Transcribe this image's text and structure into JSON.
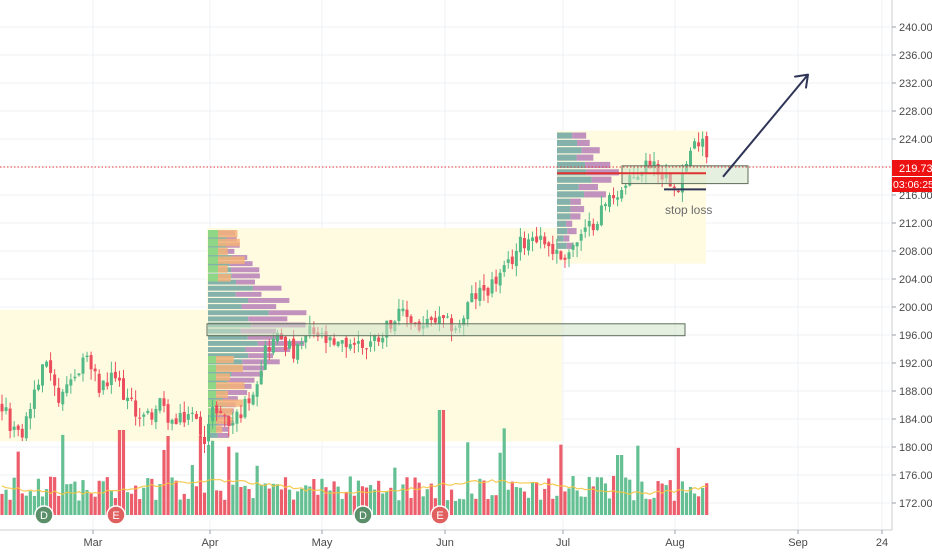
{
  "chart_data": {
    "type": "candlestick",
    "y_axis": {
      "ticks": [
        "240.00",
        "236.00",
        "232.00",
        "228.00",
        "224.00",
        "220.00",
        "216.00",
        "212.00",
        "208.00",
        "204.00",
        "200.00",
        "196.00",
        "192.00",
        "188.00",
        "184.00",
        "180.00",
        "176.00",
        "172.00"
      ],
      "range": [
        168.6,
        244.2
      ]
    },
    "x_axis": {
      "labels": [
        "Mar",
        "Apr",
        "May",
        "Jun",
        "Jul",
        "Aug",
        "Sep",
        "24"
      ]
    },
    "price_marker": {
      "value": "219.73",
      "countdown": "03:06:25",
      "color": "#ee1111"
    },
    "annotations": {
      "stop_loss": "stop loss"
    },
    "event_markers": [
      {
        "label": "D",
        "position": "mid-Feb"
      },
      {
        "label": "E",
        "position": "late-Feb"
      },
      {
        "label": "D",
        "position": "mid-May"
      },
      {
        "label": "E",
        "position": "early-Jun"
      }
    ],
    "support_zones": [
      {
        "from": "Apr",
        "to": "Jul",
        "low": 195.9,
        "high": 197.6
      },
      {
        "from": "late-Jul",
        "to": "early-Aug",
        "low": 218.2,
        "high": 219.6
      }
    ],
    "stop_loss_level": 216.8,
    "target_arrow": {
      "from": 218.6,
      "to": 233.2
    },
    "colors": {
      "up": "#53b987",
      "down": "#eb4d5c",
      "volume_up": "#53b987",
      "volume_down": "#eb4d5c",
      "zone_fill": "#fffbe0",
      "box_fill": "#cfe3c8",
      "arrow": "#2f3557",
      "ma": "#f5c542"
    }
  }
}
